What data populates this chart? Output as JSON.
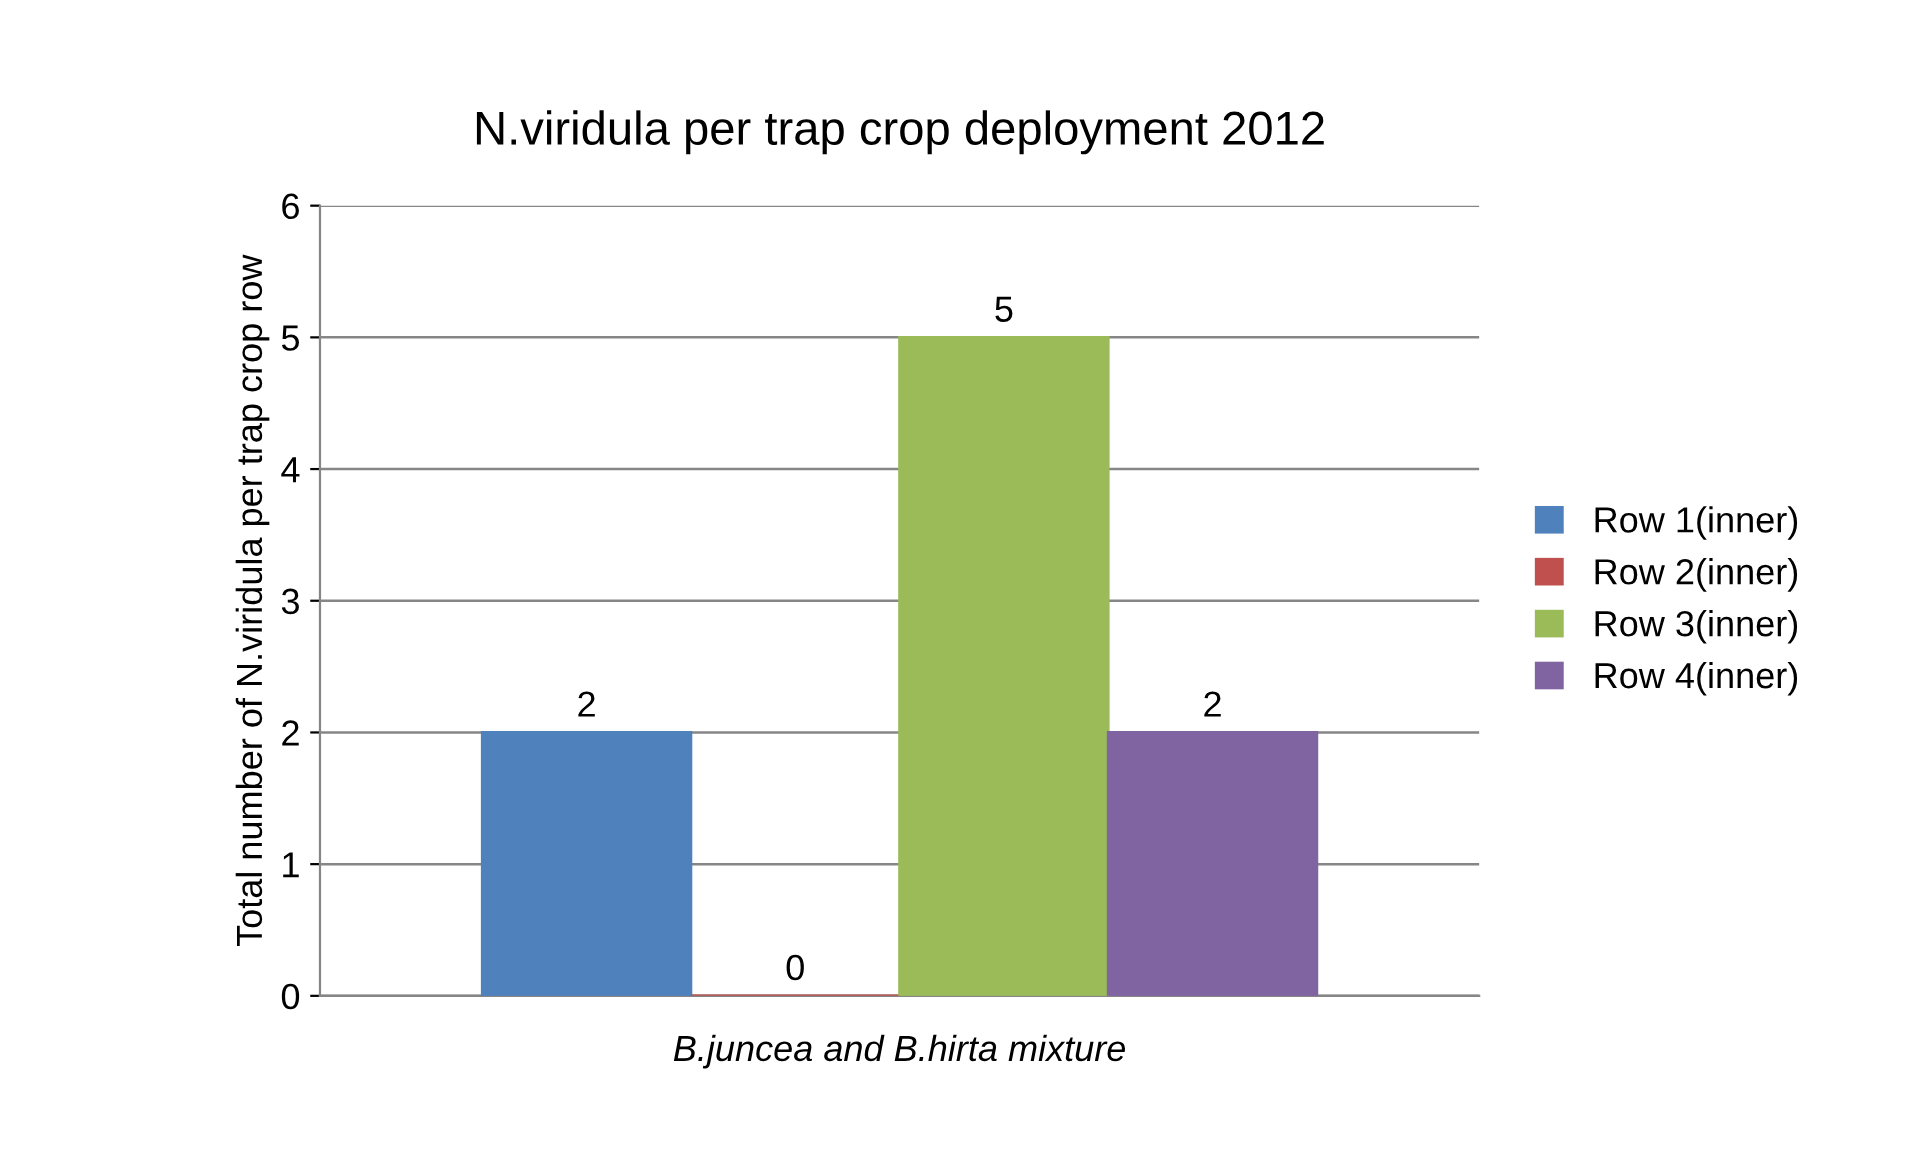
{
  "chart_data": {
    "type": "bar",
    "title": "N.viridula per trap crop deployment 2012",
    "ylabel": "Total number of N.viridula per trap crop row",
    "categories": [
      "B.juncea and B.hirta mixture"
    ],
    "series": [
      {
        "name": "Row 1(inner)",
        "color": "#4f81bd",
        "values": [
          2
        ]
      },
      {
        "name": "Row 2(inner)",
        "color": "#c0504d",
        "values": [
          0
        ]
      },
      {
        "name": "Row 3(inner)",
        "color": "#9bbb59",
        "values": [
          5
        ]
      },
      {
        "name": "Row 4(inner)",
        "color": "#8064a2",
        "values": [
          2
        ]
      }
    ],
    "ylim": [
      0,
      6
    ],
    "yticks": [
      0,
      1,
      2,
      3,
      4,
      5,
      6
    ],
    "grid": "y",
    "legend": "right",
    "data_labels": true
  }
}
